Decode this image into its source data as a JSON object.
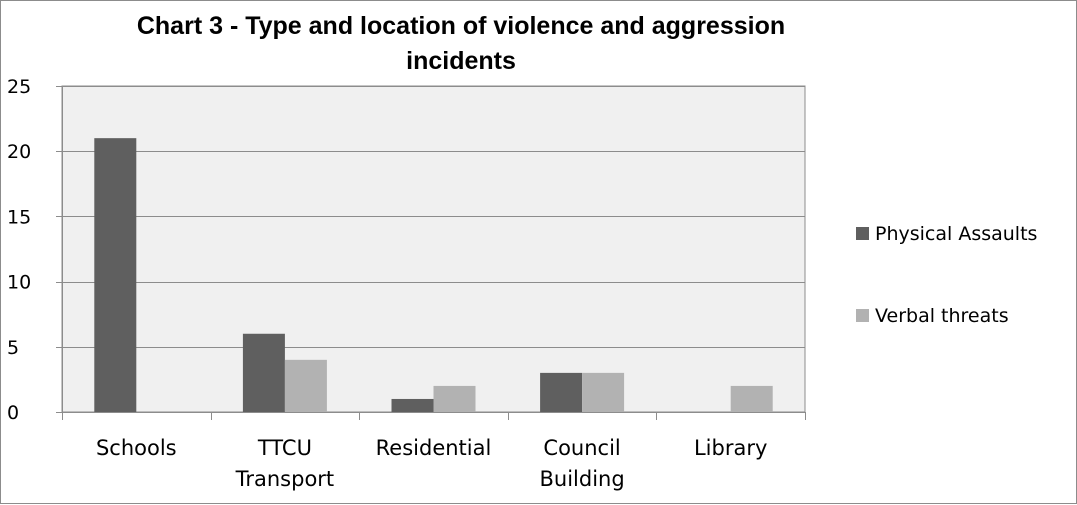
{
  "chart_data": {
    "type": "bar",
    "title": [
      "Chart 3 - Type and location of violence and aggression",
      "incidents"
    ],
    "categories": [
      [
        "Schools"
      ],
      [
        "TTCU",
        "Transport"
      ],
      [
        "Residential"
      ],
      [
        "Council",
        "Building"
      ],
      [
        "Library"
      ]
    ],
    "series": [
      {
        "name": "Physical Assaults",
        "color": "#5f5f5f",
        "values": [
          21,
          6,
          1,
          3,
          0
        ]
      },
      {
        "name": "Verbal threats",
        "color": "#b2b2b2",
        "values": [
          0,
          4,
          2,
          3,
          2
        ]
      }
    ],
    "ylim": [
      0,
      25
    ],
    "yticks": [
      0,
      5,
      10,
      15,
      20,
      25
    ],
    "xlabel": "",
    "ylabel": "",
    "grid": true,
    "legend": "right",
    "plot_background": "#f0f0f0",
    "gridline_color": "#8c8c8c"
  }
}
